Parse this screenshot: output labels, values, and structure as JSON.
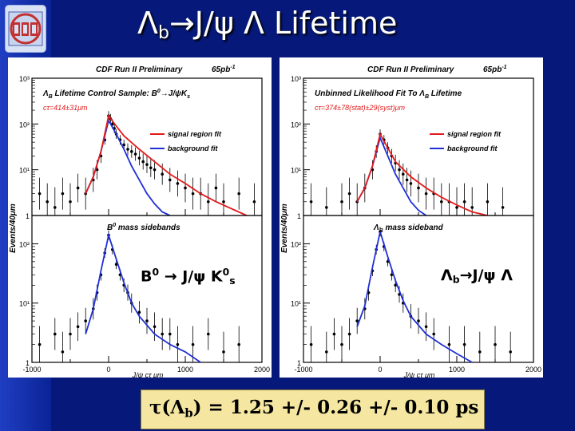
{
  "slide": {
    "title_left": "Λ",
    "title_sub": "b",
    "title_rest": "→J/ψ Λ Lifetime",
    "result": {
      "tau": "τ(Λ",
      "sub": "b",
      "rest": ") = 1.25 +/- 0.26 +/- 0.10 ps"
    },
    "colors": {
      "background": "#06197a",
      "signal_fit": "#e31a1a",
      "background_fit": "#1f2fd6",
      "result_box": "#f5e7a1"
    }
  },
  "chart_data": [
    {
      "type": "scatter",
      "panel": "left",
      "header": "CDF Run II Preliminary",
      "lumi": "65pb",
      "lumi_sup": "-1",
      "top_title": "Λ",
      "top_title_sub": "B",
      "top_title_rest": " Lifetime Control Sample: B",
      "top_title_sup": "0",
      "top_title_end": "→J/ψK",
      "top_title_sub2": "s",
      "ctau_text": "cτ=414±31μm",
      "legend": [
        {
          "name": "signal region fit",
          "color": "#e31a1a"
        },
        {
          "name": "background fit",
          "color": "#1f2fd6"
        }
      ],
      "bottom_title": "B",
      "bottom_title_sup": "0",
      "bottom_title_rest": " mass sidebands",
      "inset_label_a": "B",
      "inset_label_sup": "0",
      "inset_label_b": " → J/ψ K",
      "inset_label_sup2": "0",
      "inset_label_sub2": "s",
      "ylabel": "Events/40μm",
      "xlabel": "J/ψ cτ μm",
      "xlim": [
        -1000,
        2000
      ],
      "ylim": [
        1,
        1000
      ],
      "yscale": "log",
      "xticks": [
        "-1000",
        "0",
        "1000",
        "2000"
      ],
      "yticks_top": [
        "1",
        "10¹",
        "10²",
        "10³"
      ],
      "yticks_bottom": [
        "1",
        "10¹",
        "10²"
      ],
      "top": {
        "points": [
          [
            -900,
            3
          ],
          [
            -800,
            2
          ],
          [
            -700,
            1.5
          ],
          [
            -600,
            3
          ],
          [
            -500,
            2
          ],
          [
            -400,
            4
          ],
          [
            -300,
            3
          ],
          [
            -200,
            6
          ],
          [
            -150,
            10
          ],
          [
            -100,
            20
          ],
          [
            -50,
            45
          ],
          [
            0,
            150
          ],
          [
            25,
            130
          ],
          [
            50,
            100
          ],
          [
            75,
            80
          ],
          [
            100,
            60
          ],
          [
            150,
            45
          ],
          [
            200,
            35
          ],
          [
            250,
            28
          ],
          [
            300,
            25
          ],
          [
            350,
            22
          ],
          [
            400,
            18
          ],
          [
            450,
            15
          ],
          [
            500,
            13
          ],
          [
            550,
            11
          ],
          [
            600,
            10
          ],
          [
            700,
            8
          ],
          [
            800,
            6
          ],
          [
            900,
            5
          ],
          [
            1000,
            4
          ],
          [
            1100,
            3
          ],
          [
            1200,
            3
          ],
          [
            1300,
            2
          ],
          [
            1400,
            4
          ],
          [
            1500,
            2
          ],
          [
            1700,
            3
          ],
          [
            1900,
            2
          ]
        ],
        "signal_fit": [
          [
            -300,
            3
          ],
          [
            -200,
            7
          ],
          [
            -100,
            25
          ],
          [
            0,
            150
          ],
          [
            100,
            90
          ],
          [
            200,
            55
          ],
          [
            400,
            28
          ],
          [
            600,
            15
          ],
          [
            800,
            8
          ],
          [
            1000,
            5
          ],
          [
            1200,
            3
          ],
          [
            1400,
            2
          ],
          [
            1800,
            1
          ]
        ],
        "background_fit": [
          [
            -300,
            3
          ],
          [
            -200,
            7
          ],
          [
            -100,
            25
          ],
          [
            0,
            120
          ],
          [
            100,
            60
          ],
          [
            200,
            28
          ],
          [
            300,
            12
          ],
          [
            400,
            6
          ],
          [
            500,
            3
          ],
          [
            600,
            1.8
          ],
          [
            700,
            1.2
          ],
          [
            800,
            1
          ]
        ]
      },
      "bottom": {
        "points": [
          [
            -900,
            2
          ],
          [
            -700,
            3
          ],
          [
            -600,
            1.5
          ],
          [
            -500,
            3
          ],
          [
            -400,
            4
          ],
          [
            -300,
            5
          ],
          [
            -200,
            8
          ],
          [
            -150,
            15
          ],
          [
            -100,
            30
          ],
          [
            -50,
            70
          ],
          [
            0,
            140
          ],
          [
            50,
            80
          ],
          [
            100,
            45
          ],
          [
            150,
            30
          ],
          [
            200,
            20
          ],
          [
            250,
            15
          ],
          [
            300,
            10
          ],
          [
            400,
            7
          ],
          [
            500,
            5
          ],
          [
            600,
            4
          ],
          [
            700,
            3
          ],
          [
            800,
            3
          ],
          [
            900,
            2
          ],
          [
            1100,
            2
          ],
          [
            1300,
            3
          ],
          [
            1500,
            1.5
          ],
          [
            1700,
            2
          ]
        ],
        "fit": [
          [
            -300,
            3
          ],
          [
            -200,
            8
          ],
          [
            -100,
            35
          ],
          [
            0,
            140
          ],
          [
            100,
            55
          ],
          [
            200,
            22
          ],
          [
            300,
            10
          ],
          [
            400,
            6
          ],
          [
            600,
            3
          ],
          [
            800,
            2
          ],
          [
            1000,
            1.5
          ],
          [
            1200,
            1
          ]
        ]
      }
    },
    {
      "type": "scatter",
      "panel": "right",
      "header": "CDF Run II Preliminary",
      "lumi": "65pb",
      "lumi_sup": "-1",
      "top_title": "Unbinned Likelihood Fit To Λ",
      "top_title_sub": "B",
      "top_title_rest": " Lifetime",
      "ctau_text": "cτ=374±78(stat)±29(syst)μm",
      "legend": [
        {
          "name": "signal region fit",
          "color": "#e31a1a"
        },
        {
          "name": "background fit",
          "color": "#1f2fd6"
        }
      ],
      "bottom_title": "Λ",
      "bottom_title_sub": "B",
      "bottom_title_rest": " mass sideband",
      "inset_label_a": "Λ",
      "inset_label_sub": "b",
      "inset_label_b": "→J/ψ Λ",
      "ylabel": "Events/40μm",
      "xlabel": "J/ψ cτ μm",
      "xlim": [
        -1000,
        2000
      ],
      "ylim": [
        1,
        1000
      ],
      "yscale": "log",
      "xticks": [
        "-1000",
        "0",
        "1000",
        "2000"
      ],
      "yticks_top": [
        "1",
        "10¹",
        "10²",
        "10³"
      ],
      "yticks_bottom": [
        "1",
        "10¹",
        "10²"
      ],
      "top": {
        "points": [
          [
            -900,
            2
          ],
          [
            -700,
            1.5
          ],
          [
            -500,
            2
          ],
          [
            -400,
            3
          ],
          [
            -300,
            2
          ],
          [
            -200,
            4
          ],
          [
            -100,
            10
          ],
          [
            -50,
            25
          ],
          [
            0,
            60
          ],
          [
            50,
            45
          ],
          [
            100,
            30
          ],
          [
            150,
            20
          ],
          [
            200,
            14
          ],
          [
            250,
            10
          ],
          [
            300,
            8
          ],
          [
            350,
            6
          ],
          [
            400,
            5
          ],
          [
            500,
            4
          ],
          [
            600,
            3
          ],
          [
            700,
            3
          ],
          [
            800,
            2
          ],
          [
            900,
            2
          ],
          [
            1000,
            1.5
          ],
          [
            1100,
            2
          ],
          [
            1200,
            1.5
          ],
          [
            1400,
            2
          ],
          [
            1600,
            1.5
          ]
        ],
        "signal_fit": [
          [
            -300,
            2
          ],
          [
            -200,
            4
          ],
          [
            -100,
            12
          ],
          [
            0,
            60
          ],
          [
            100,
            30
          ],
          [
            200,
            15
          ],
          [
            400,
            7
          ],
          [
            600,
            4
          ],
          [
            800,
            2.5
          ],
          [
            1000,
            1.7
          ],
          [
            1200,
            1.2
          ],
          [
            1400,
            1
          ]
        ],
        "background_fit": [
          [
            -300,
            2
          ],
          [
            -200,
            4
          ],
          [
            -100,
            12
          ],
          [
            0,
            50
          ],
          [
            100,
            20
          ],
          [
            200,
            8
          ],
          [
            300,
            4
          ],
          [
            400,
            2
          ],
          [
            500,
            1.3
          ],
          [
            600,
            1
          ]
        ]
      },
      "bottom": {
        "points": [
          [
            -900,
            2
          ],
          [
            -700,
            1.5
          ],
          [
            -600,
            3
          ],
          [
            -500,
            2
          ],
          [
            -400,
            3
          ],
          [
            -300,
            5
          ],
          [
            -200,
            8
          ],
          [
            -150,
            15
          ],
          [
            -100,
            35
          ],
          [
            -50,
            80
          ],
          [
            0,
            160
          ],
          [
            50,
            90
          ],
          [
            100,
            50
          ],
          [
            150,
            30
          ],
          [
            200,
            20
          ],
          [
            250,
            14
          ],
          [
            300,
            10
          ],
          [
            400,
            6
          ],
          [
            500,
            5
          ],
          [
            600,
            4
          ],
          [
            700,
            3
          ],
          [
            900,
            2
          ],
          [
            1100,
            2
          ],
          [
            1300,
            1.5
          ],
          [
            1500,
            2
          ],
          [
            1700,
            1.5
          ]
        ],
        "fit": [
          [
            -300,
            4
          ],
          [
            -200,
            9
          ],
          [
            -100,
            40
          ],
          [
            0,
            160
          ],
          [
            100,
            60
          ],
          [
            200,
            24
          ],
          [
            300,
            11
          ],
          [
            400,
            6
          ],
          [
            600,
            3
          ],
          [
            800,
            2
          ],
          [
            1000,
            1.4
          ],
          [
            1200,
            1
          ]
        ]
      }
    }
  ]
}
